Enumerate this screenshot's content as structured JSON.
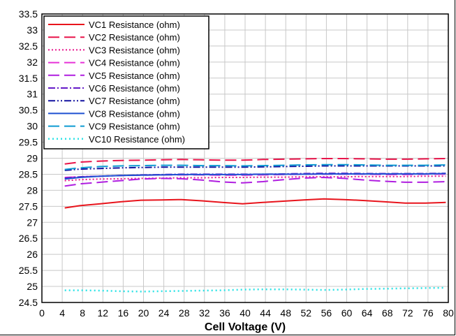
{
  "chart_data": {
    "type": "line",
    "title": "",
    "xlabel": "Cell Voltage (V)",
    "ylabel": "",
    "xlim": [
      0,
      80
    ],
    "ylim": [
      24.5,
      33.5
    ],
    "x_ticks": [
      "0",
      "4",
      "8",
      "12",
      "16",
      "20",
      "24",
      "28",
      "32",
      "36",
      "40",
      "44",
      "48",
      "52",
      "56",
      "60",
      "64",
      "68",
      "72",
      "76",
      "80"
    ],
    "y_ticks": [
      "24.5",
      "25",
      "25.5",
      "26",
      "26.5",
      "27",
      "27.5",
      "28",
      "28.5",
      "29",
      "29.5",
      "30",
      "30.5",
      "31",
      "31.5",
      "32",
      "32.5",
      "33",
      "33.5"
    ],
    "grid": true,
    "legend_position": "top-left",
    "x": [
      4.5,
      7.5,
      11.5,
      15.5,
      19.5,
      23.5,
      27.5,
      31.5,
      35.5,
      39.5,
      43.5,
      47.5,
      51.5,
      55.5,
      59.5,
      63.5,
      67.5,
      71.5,
      75.5,
      79.5
    ],
    "series": [
      {
        "name": "VC1 Resistance (ohm)",
        "color": "#e8141c",
        "dash": "",
        "width": 2,
        "values": [
          27.45,
          27.52,
          27.58,
          27.64,
          27.69,
          27.7,
          27.71,
          27.67,
          27.62,
          27.58,
          27.62,
          27.66,
          27.7,
          27.73,
          27.71,
          27.68,
          27.64,
          27.6,
          27.6,
          27.62
        ]
      },
      {
        "name": "VC2 Resistance (ohm)",
        "color": "#e8144a",
        "dash": "16,7",
        "width": 2,
        "values": [
          28.82,
          28.88,
          28.91,
          28.93,
          28.94,
          28.95,
          28.96,
          28.95,
          28.94,
          28.94,
          28.96,
          28.97,
          28.98,
          28.99,
          28.99,
          28.98,
          28.97,
          28.97,
          28.98,
          28.99
        ]
      },
      {
        "name": "VC3 Resistance (ohm)",
        "color": "#e8148c",
        "dash": "2,3",
        "width": 2,
        "values": [
          28.3,
          28.33,
          28.35,
          28.36,
          28.37,
          28.38,
          28.39,
          28.39,
          28.4,
          28.4,
          28.41,
          28.41,
          28.42,
          28.42,
          28.42,
          28.43,
          28.43,
          28.43,
          28.44,
          28.44
        ]
      },
      {
        "name": "VC4 Resistance (ohm)",
        "color": "#e632d8",
        "dash": "16,7",
        "width": 2,
        "values": [
          28.4,
          28.42,
          28.44,
          28.46,
          28.47,
          28.48,
          28.48,
          28.48,
          28.47,
          28.47,
          28.48,
          28.49,
          28.5,
          28.5,
          28.5,
          28.5,
          28.49,
          28.49,
          28.5,
          28.5
        ]
      },
      {
        "name": "VC5 Resistance (ohm)",
        "color": "#b01ee0",
        "dash": "16,7",
        "width": 2,
        "values": [
          28.13,
          28.2,
          28.25,
          28.3,
          28.35,
          28.37,
          28.36,
          28.32,
          28.26,
          28.23,
          28.27,
          28.33,
          28.38,
          28.4,
          28.37,
          28.32,
          28.28,
          28.25,
          28.25,
          28.27
        ]
      },
      {
        "name": "VC6 Resistance (ohm)",
        "color": "#6419c8",
        "dash": "10,3,2,3",
        "width": 2,
        "values": [
          28.38,
          28.42,
          28.44,
          28.46,
          28.48,
          28.49,
          28.5,
          28.5,
          28.5,
          28.5,
          28.5,
          28.51,
          28.52,
          28.53,
          28.53,
          28.52,
          28.52,
          28.52,
          28.52,
          28.53
        ]
      },
      {
        "name": "VC7 Resistance (ohm)",
        "color": "#1414a0",
        "dash": "10,3,2,3,2,3",
        "width": 2,
        "values": [
          28.62,
          28.66,
          28.68,
          28.7,
          28.71,
          28.72,
          28.72,
          28.72,
          28.72,
          28.72,
          28.73,
          28.74,
          28.75,
          28.76,
          28.76,
          28.76,
          28.76,
          28.76,
          28.76,
          28.76
        ]
      },
      {
        "name": "VC8 Resistance (ohm)",
        "color": "#1e50d2",
        "dash": "",
        "width": 2,
        "values": [
          28.35,
          28.4,
          28.44,
          28.46,
          28.47,
          28.48,
          28.49,
          28.49,
          28.49,
          28.49,
          28.5,
          28.5,
          28.5,
          28.51,
          28.51,
          28.51,
          28.51,
          28.51,
          28.51,
          28.52
        ]
      },
      {
        "name": "VC9 Resistance (ohm)",
        "color": "#0f9bd2",
        "dash": "16,7",
        "width": 2,
        "values": [
          28.65,
          28.7,
          28.74,
          28.76,
          28.77,
          28.78,
          28.78,
          28.77,
          28.77,
          28.76,
          28.77,
          28.78,
          28.79,
          28.8,
          28.8,
          28.79,
          28.78,
          28.78,
          28.78,
          28.79
        ]
      },
      {
        "name": "VC10 Resistance (ohm)",
        "color": "#2ee3e6",
        "dash": "2,4",
        "width": 2.5,
        "values": [
          24.88,
          24.88,
          24.87,
          24.85,
          24.84,
          24.85,
          24.86,
          24.87,
          24.88,
          24.9,
          24.91,
          24.91,
          24.9,
          24.89,
          24.9,
          24.92,
          24.93,
          24.94,
          24.95,
          24.96
        ]
      }
    ]
  }
}
